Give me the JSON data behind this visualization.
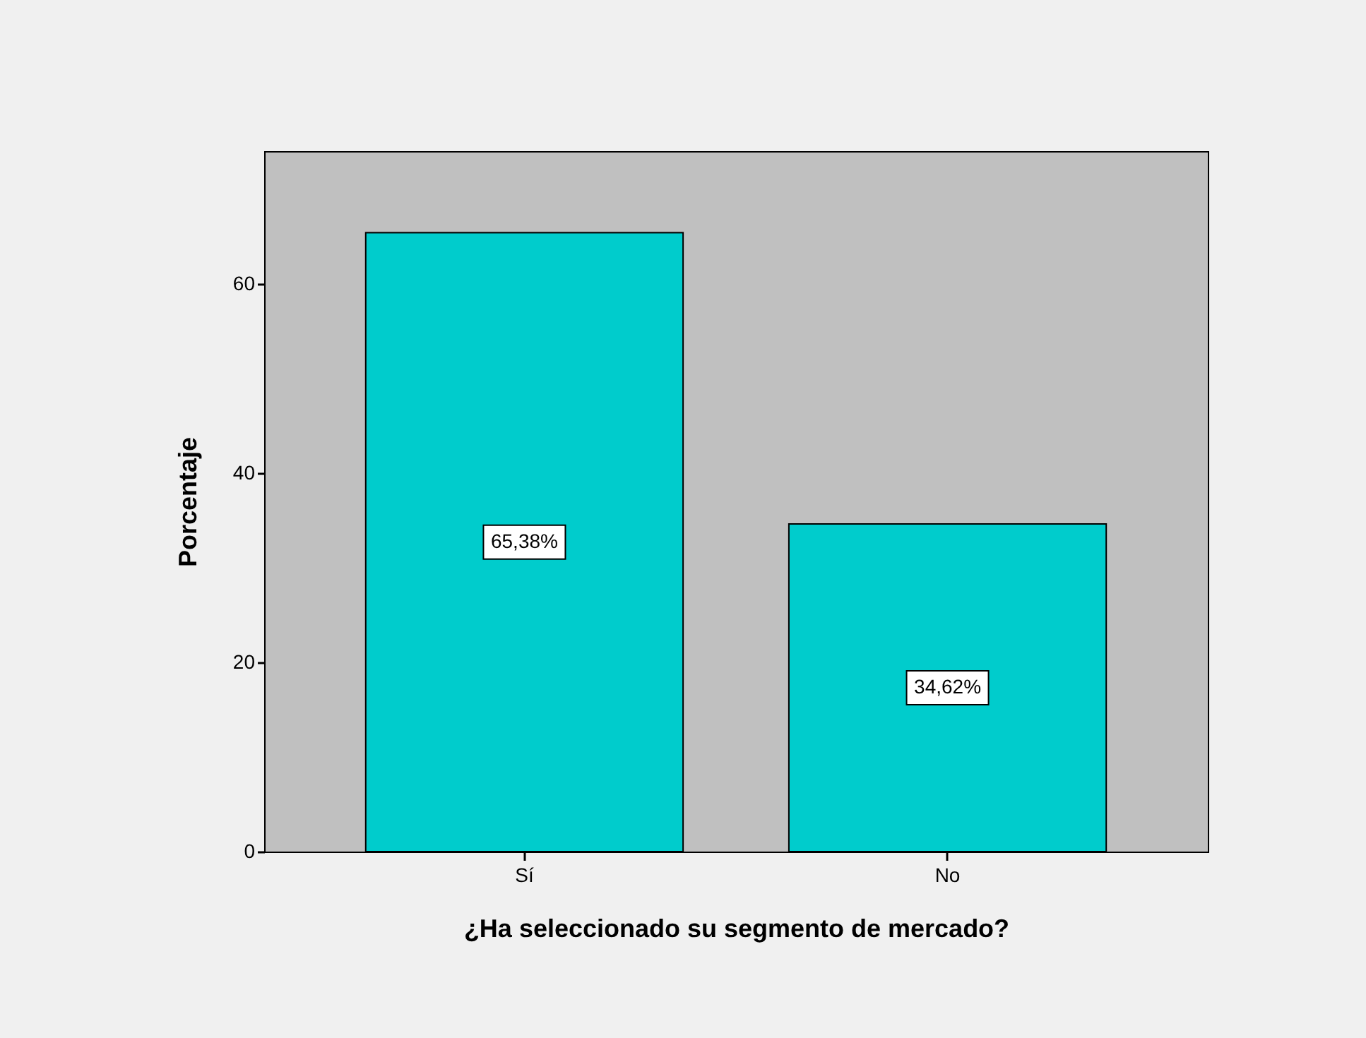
{
  "chart_data": {
    "type": "bar",
    "xlabel": "¿Ha seleccionado su segmento de mercado?",
    "ylabel": "Porcentaje",
    "categories": [
      "Sí",
      "No"
    ],
    "values": [
      65.38,
      34.62
    ],
    "color": "#00cccc",
    "value_labels": [
      "65,38%",
      "34,62%"
    ],
    "ylim": [
      0,
      74
    ],
    "yticks": [
      0,
      20,
      40,
      60
    ]
  }
}
